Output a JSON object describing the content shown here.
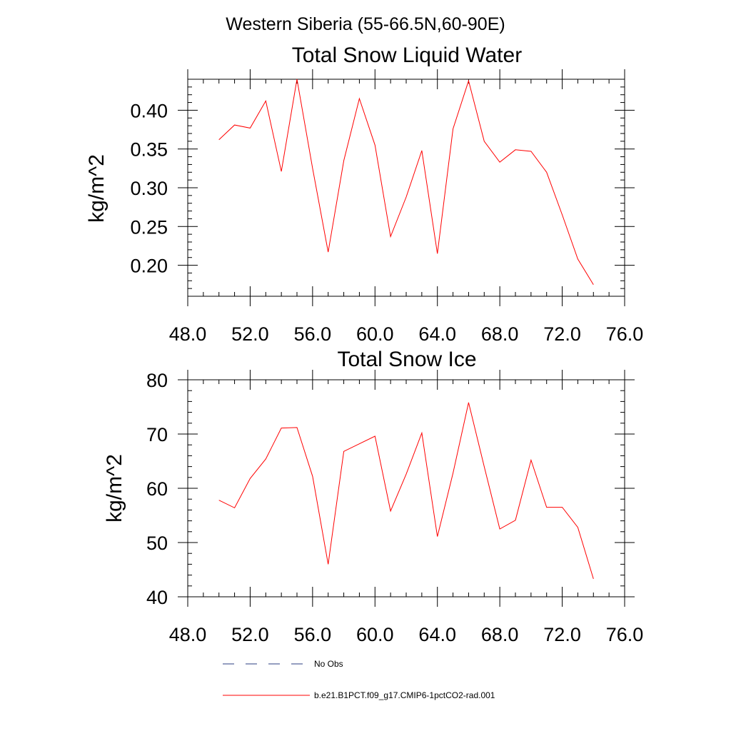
{
  "figure": {
    "title": "Western Siberia (55-66.5N,60-90E)"
  },
  "chart_data": [
    {
      "type": "line",
      "title": "Total Snow Liquid Water",
      "xlabel": "",
      "ylabel": "kg/m^2",
      "xlim": [
        48,
        76
      ],
      "ylim": [
        0.16,
        0.44
      ],
      "x_ticks": [
        48,
        52,
        56,
        60,
        64,
        68,
        72,
        76
      ],
      "x_tick_labels": [
        "48.0",
        "52.0",
        "56.0",
        "60.0",
        "64.0",
        "68.0",
        "72.0",
        "76.0"
      ],
      "y_ticks": [
        0.2,
        0.25,
        0.3,
        0.35,
        0.4
      ],
      "y_tick_labels": [
        "0.20",
        "0.25",
        "0.30",
        "0.35",
        "0.40"
      ],
      "grid": false,
      "series": [
        {
          "name": "b.e21.B1PCT.f09_g17.CMIP6-1pctCO2-rad.001",
          "color": "#ff0000",
          "x": [
            50,
            51,
            52,
            53,
            54,
            55,
            56,
            57,
            58,
            59,
            60,
            61,
            62,
            63,
            64,
            65,
            66,
            67,
            68,
            69,
            70,
            71,
            72,
            73,
            74
          ],
          "y": [
            0.362,
            0.381,
            0.377,
            0.412,
            0.321,
            0.44,
            0.325,
            0.217,
            0.335,
            0.415,
            0.355,
            0.237,
            0.288,
            0.348,
            0.215,
            0.376,
            0.438,
            0.36,
            0.333,
            0.349,
            0.347,
            0.32,
            0.265,
            0.208,
            0.175
          ]
        }
      ]
    },
    {
      "type": "line",
      "title": "Total Snow Ice",
      "xlabel": "",
      "ylabel": "kg/m^2",
      "xlim": [
        48,
        76
      ],
      "ylim": [
        40,
        80
      ],
      "x_ticks": [
        48,
        52,
        56,
        60,
        64,
        68,
        72,
        76
      ],
      "x_tick_labels": [
        "48.0",
        "52.0",
        "56.0",
        "60.0",
        "64.0",
        "68.0",
        "72.0",
        "76.0"
      ],
      "y_ticks": [
        40,
        50,
        60,
        70,
        80
      ],
      "y_tick_labels": [
        "40",
        "50",
        "60",
        "70",
        "80"
      ],
      "grid": false,
      "series": [
        {
          "name": "b.e21.B1PCT.f09_g17.CMIP6-1pctCO2-rad.001",
          "color": "#ff0000",
          "x": [
            50,
            51,
            52,
            53,
            54,
            55,
            56,
            57,
            58,
            59,
            60,
            61,
            62,
            63,
            64,
            65,
            66,
            67,
            68,
            69,
            70,
            71,
            72,
            73,
            74
          ],
          "y": [
            57.8,
            56.4,
            61.8,
            65.4,
            71.1,
            71.2,
            62.2,
            46.0,
            66.8,
            68.2,
            69.6,
            55.8,
            62.6,
            70.2,
            51.1,
            62.8,
            75.8,
            64.0,
            52.5,
            54.1,
            65.2,
            56.5,
            56.5,
            52.8,
            43.3
          ]
        }
      ]
    }
  ],
  "legend": [
    {
      "label": "No Obs",
      "color": "#2b3d80",
      "dash": "dashed"
    },
    {
      "label": "b.e21.B1PCT.f09_g17.CMIP6-1pctCO2-rad.001",
      "color": "#ff0000",
      "dash": "solid"
    }
  ]
}
